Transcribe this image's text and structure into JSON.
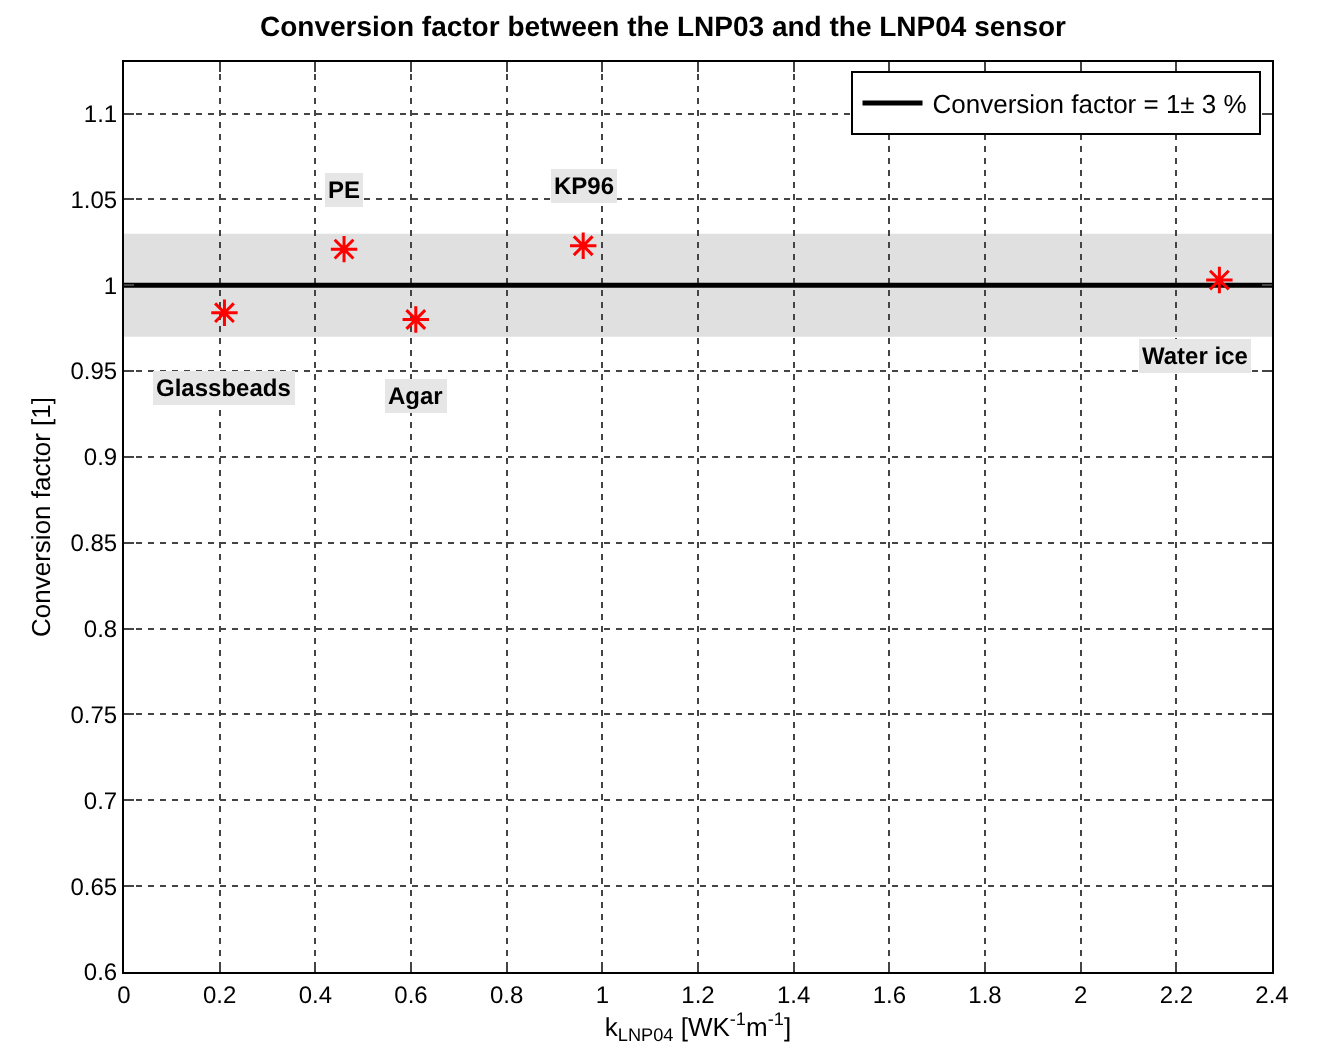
{
  "chart_data": {
    "type": "scatter",
    "title": "Conversion factor between the LNP03 and the LNP04 sensor",
    "xlabel": "k$_{LNP04}$ [WK$^{-1}$m$^{-1}$]",
    "ylabel": "Conversion factor [1]",
    "x": [
      0.21,
      0.46,
      0.61,
      0.96,
      2.29
    ],
    "series": [
      {
        "color": "#ff0000",
        "values": [
          0.984,
          1.021,
          0.98,
          1.023,
          1.003
        ]
      }
    ],
    "marker": "cross",
    "grid": true,
    "legend": "top right",
    "xlim": [
      0,
      2.4
    ],
    "xticks": [
      0,
      0.2,
      0.4,
      0.6,
      0.8,
      1,
      1.2,
      1.4,
      1.6,
      1.8,
      2,
      2.2,
      2.4
    ],
    "ylim": [
      0.6,
      1.13
    ],
    "yticks": [
      0.6,
      0.65,
      0.7,
      0.75,
      0.8,
      0.85,
      0.9,
      0.95,
      1,
      1.05,
      1.1
    ],
    "ref_lines": [
      {
        "axis": "y",
        "value": 1,
        "label": "Conversion factor = 1± 3 %",
        "color": "#000000"
      }
    ],
    "bands": [
      {
        "axis": "y",
        "from": 0.97,
        "to": 1.03,
        "color": "#e0e0e0"
      }
    ],
    "annotations": [
      {
        "text": "Glassbeads",
        "x": 0.21,
        "y": 0.984
      },
      {
        "text": "PE",
        "x": 0.46,
        "y": 1.021
      },
      {
        "text": "Agar",
        "x": 0.61,
        "y": 0.98
      },
      {
        "text": "KP96",
        "x": 0.96,
        "y": 1.023
      },
      {
        "text": "Water ice",
        "x": 2.29,
        "y": 1.003
      }
    ]
  }
}
